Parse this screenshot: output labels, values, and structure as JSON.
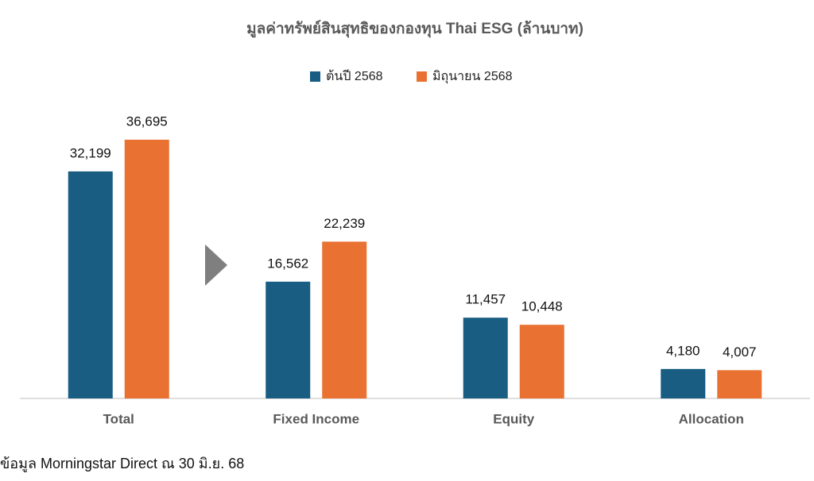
{
  "chart_data": {
    "type": "bar",
    "title": "มูลค่าทรัพย์สินสุทธิของกองทุน Thai ESG (ล้านบาท)",
    "categories": [
      "Total",
      "Fixed Income",
      "Equity",
      "Allocation"
    ],
    "series": [
      {
        "name": "ต้นปี 2568",
        "color": "#195d82",
        "values": [
          32199,
          16562,
          11457,
          4180
        ],
        "value_labels": [
          "32,199",
          "16,562",
          "11,457",
          "4,180"
        ]
      },
      {
        "name": "มิถุนายน 2568",
        "color": "#e97132",
        "values": [
          36695,
          22239,
          10448,
          4007
        ],
        "value_labels": [
          "36,695",
          "22,239",
          "10,448",
          "4,007"
        ]
      }
    ],
    "legend": "top",
    "source": "ข้อมูล Morningstar Direct ณ 30 มิ.ย. 68"
  }
}
